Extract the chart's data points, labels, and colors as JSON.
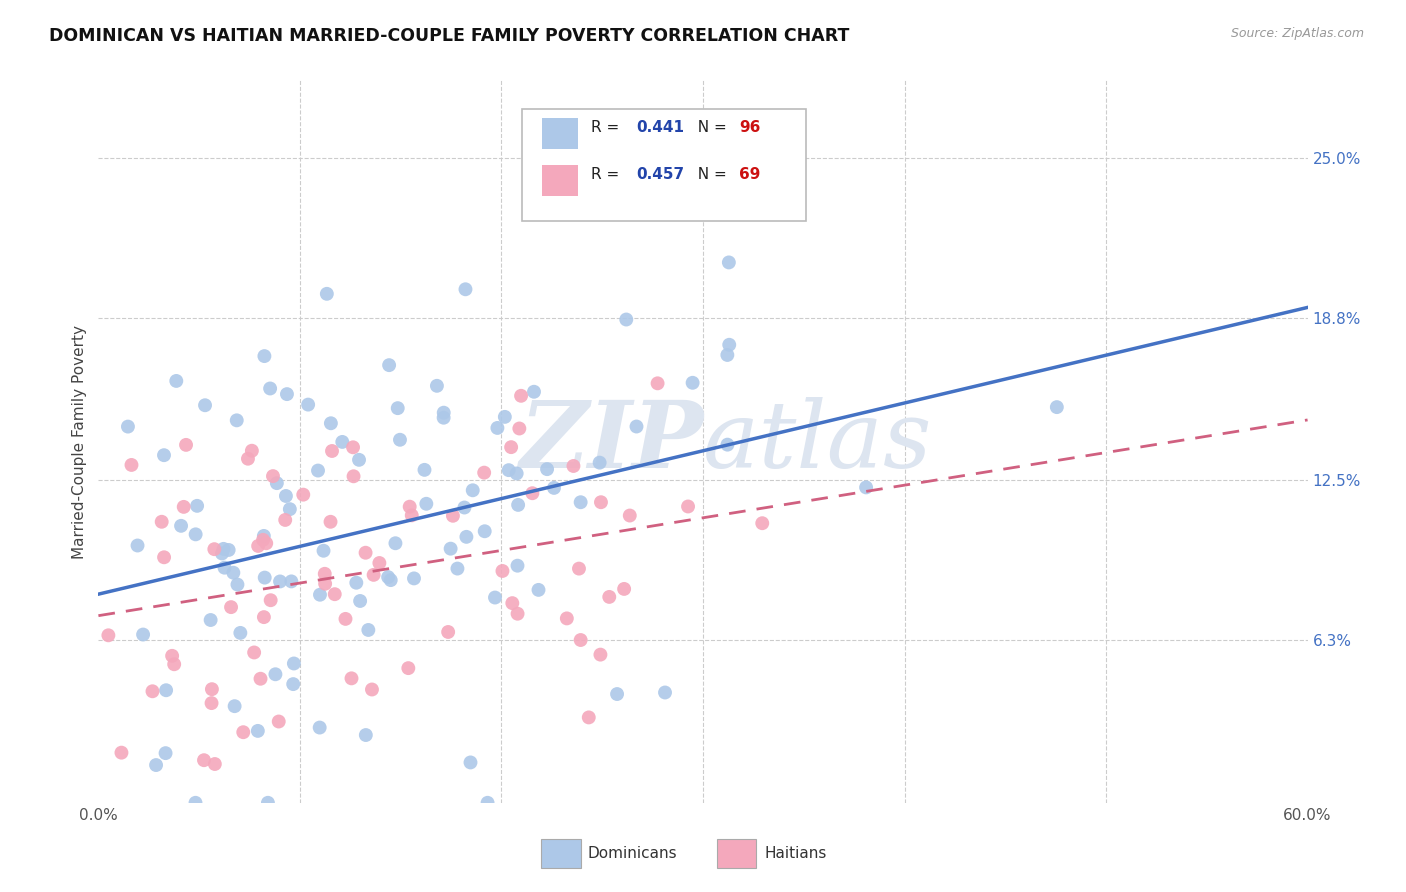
{
  "title": "DOMINICAN VS HAITIAN MARRIED-COUPLE FAMILY POVERTY CORRELATION CHART",
  "source": "Source: ZipAtlas.com",
  "ylabel": "Married-Couple Family Poverty",
  "xlim": [
    0.0,
    0.6
  ],
  "ylim": [
    0.0,
    0.28
  ],
  "ytick_labels_right": [
    "25.0%",
    "18.8%",
    "12.5%",
    "6.3%"
  ],
  "ytick_values_right": [
    0.25,
    0.188,
    0.125,
    0.063
  ],
  "r_dominican": 0.441,
  "n_dominican": 96,
  "r_haitian": 0.457,
  "n_haitian": 69,
  "dominican_color": "#adc8e8",
  "haitian_color": "#f4a8bc",
  "dominican_line_color": "#4472c4",
  "haitian_line_color": "#d06080",
  "background_color": "#ffffff",
  "grid_color": "#cccccc",
  "watermark_color": "#dde5f0",
  "legend_r_color": "#2244aa",
  "legend_n_color": "#cc1111",
  "dom_line_intercept": 0.075,
  "dom_line_slope": 0.175,
  "hai_line_intercept": 0.063,
  "hai_line_slope": 0.175
}
